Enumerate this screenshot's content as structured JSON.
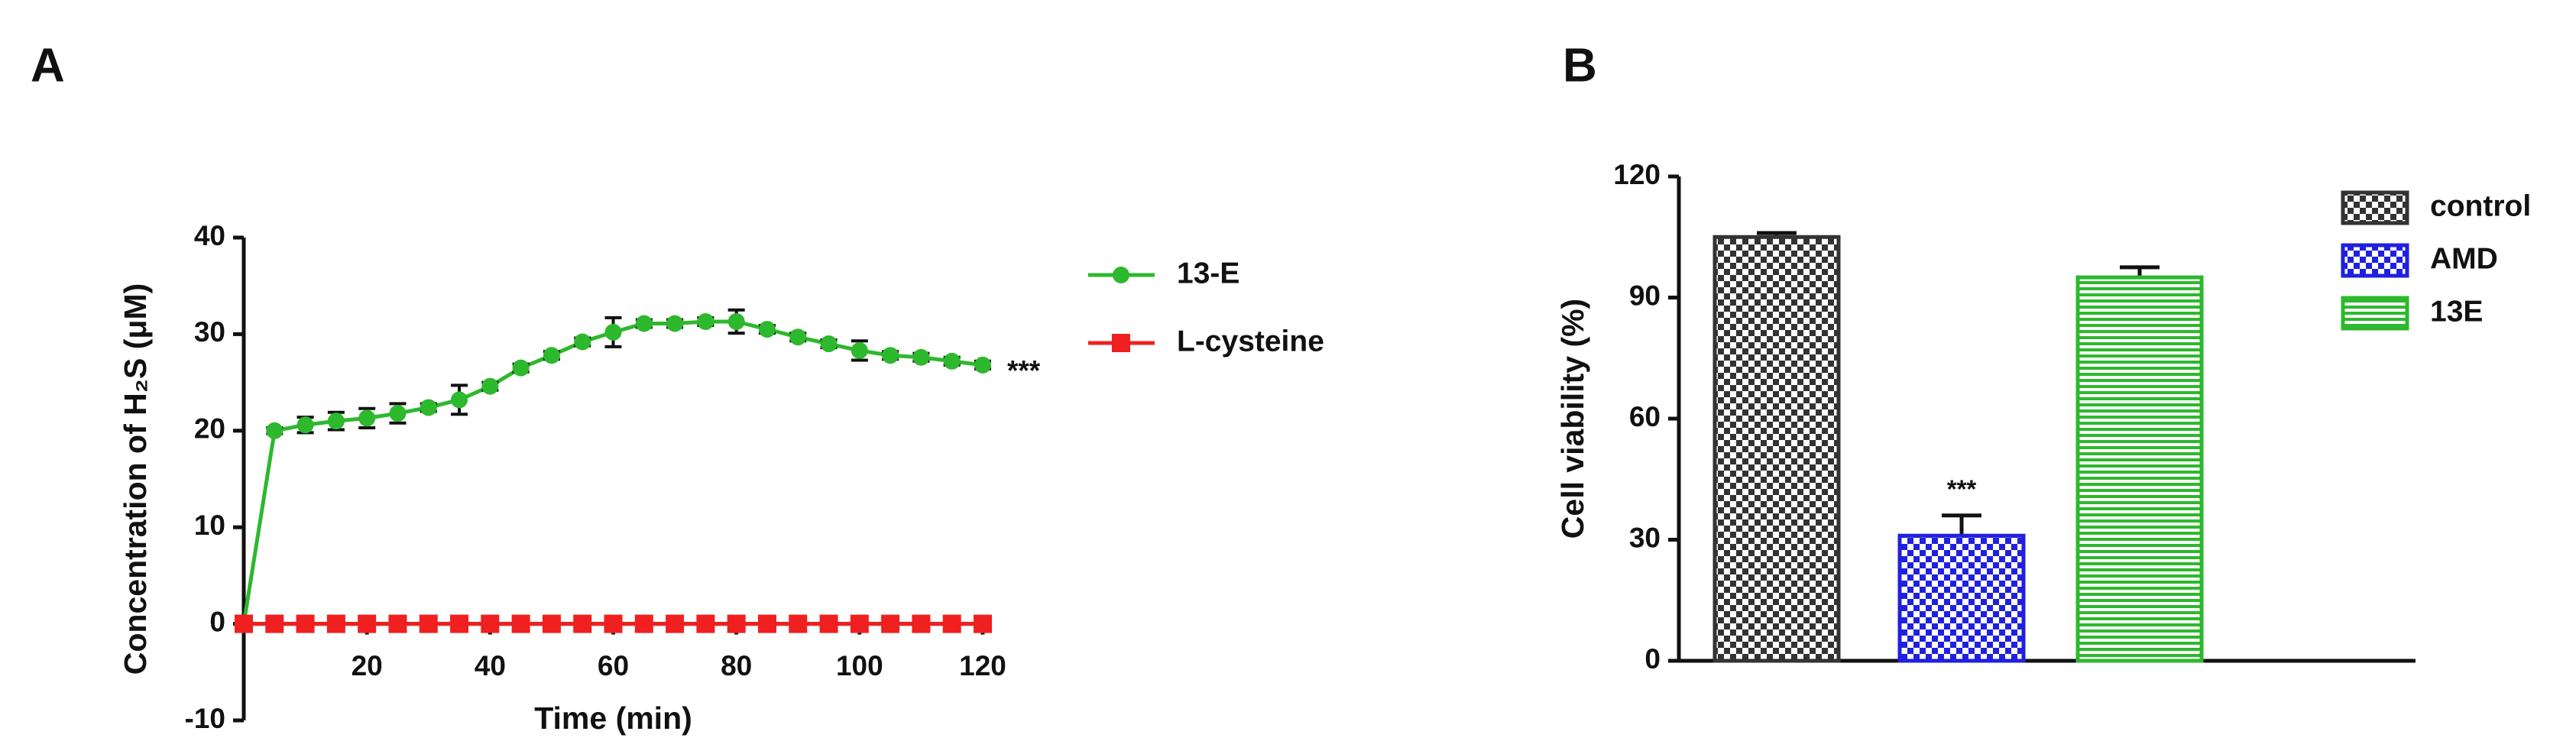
{
  "chart_data": [
    {
      "type": "line",
      "label": "A",
      "xlabel": "Time (min)",
      "ylabel": "Concentration of H₂S (μM)",
      "x": [
        0,
        5,
        10,
        15,
        20,
        25,
        30,
        35,
        40,
        45,
        50,
        55,
        60,
        65,
        70,
        75,
        80,
        85,
        90,
        95,
        100,
        105,
        110,
        115,
        120
      ],
      "series": [
        {
          "name": "13-E",
          "color": "#2db82d",
          "marker": "circle",
          "values": [
            0,
            20,
            20.6,
            21,
            21.3,
            21.8,
            22.4,
            23.2,
            24.6,
            26.5,
            27.8,
            29.2,
            30.2,
            31.1,
            31.1,
            31.3,
            31.3,
            30.5,
            29.7,
            29,
            28.3,
            27.8,
            27.6,
            27.2,
            26.8
          ],
          "errors": [
            0,
            0.3,
            0.8,
            0.9,
            1,
            1,
            0.4,
            1.5,
            0.4,
            0.4,
            0.4,
            0.4,
            1.5,
            0.4,
            0.4,
            0.4,
            1.2,
            0.4,
            0.4,
            0.4,
            1,
            0.4,
            0.4,
            0.4,
            0.4
          ]
        },
        {
          "name": "L-cysteine",
          "color": "#f02020",
          "marker": "square",
          "values": [
            0,
            0,
            0,
            0,
            0,
            0,
            0,
            0,
            0,
            0,
            0,
            0,
            0,
            0,
            0,
            0,
            0,
            0,
            0,
            0,
            0,
            0,
            0,
            0,
            0
          ]
        }
      ],
      "annotation": "***",
      "xlim": [
        0,
        120
      ],
      "xticks": [
        20,
        40,
        60,
        80,
        100,
        120
      ],
      "ylim": [
        -10,
        40
      ],
      "yticks": [
        -10,
        0,
        10,
        20,
        30,
        40
      ]
    },
    {
      "type": "bar",
      "label": "B",
      "ylabel": "Cell viability (%)",
      "categories": [
        "control",
        "AMD",
        "13E"
      ],
      "values": [
        105,
        31,
        95
      ],
      "errors": [
        1,
        5,
        2.5
      ],
      "colors": [
        "#333333",
        "#2020e0",
        "#2db82d"
      ],
      "patterns": [
        "checker",
        "checker",
        "lines"
      ],
      "annotations": [
        null,
        "***",
        null
      ],
      "ylim": [
        0,
        120
      ],
      "yticks": [
        0,
        30,
        60,
        90,
        120
      ]
    }
  ]
}
